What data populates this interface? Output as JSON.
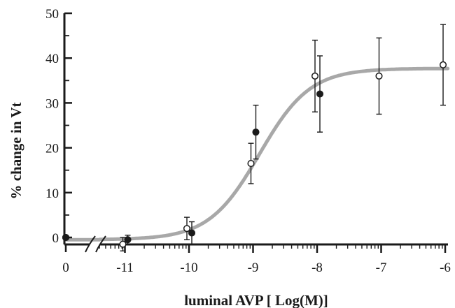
{
  "chart_data": {
    "type": "scatter",
    "title": "",
    "xlabel": "luminal AVP [ Log(M)]",
    "ylabel": "% change in Vt",
    "x_scale": "log",
    "x_break": true,
    "xlim": [
      -11.5,
      -6
    ],
    "ylim": [
      0,
      50
    ],
    "x_tick_labels": [
      "0",
      "-11",
      "-10",
      "-9",
      "-8",
      "-7",
      "-6"
    ],
    "y_ticks": [
      0,
      10,
      20,
      30,
      40,
      50
    ],
    "grid": false,
    "legend": "none",
    "series": [
      {
        "marker": "open-circle",
        "x": [
          "0",
          "-11",
          "-10",
          "-9",
          "-8",
          "-7",
          "-6"
        ],
        "y": [
          0,
          -1.5,
          2,
          16.5,
          36,
          36,
          38.5
        ],
        "error": [
          0,
          1.5,
          2.5,
          4.5,
          8,
          8.5,
          9
        ]
      },
      {
        "marker": "filled-circle",
        "x": [
          "0",
          "-11",
          "-10",
          "-9",
          "-8"
        ],
        "y": [
          0,
          -0.5,
          1,
          23.5,
          32
        ],
        "error": [
          0,
          1,
          2.5,
          6,
          8.5
        ]
      }
    ],
    "fit_curve": {
      "type": "sigmoid",
      "bottom": -0.5,
      "top": 37.7,
      "ec50_log": -8.9,
      "hill": 1.1,
      "color": "#a8a8a8"
    }
  }
}
